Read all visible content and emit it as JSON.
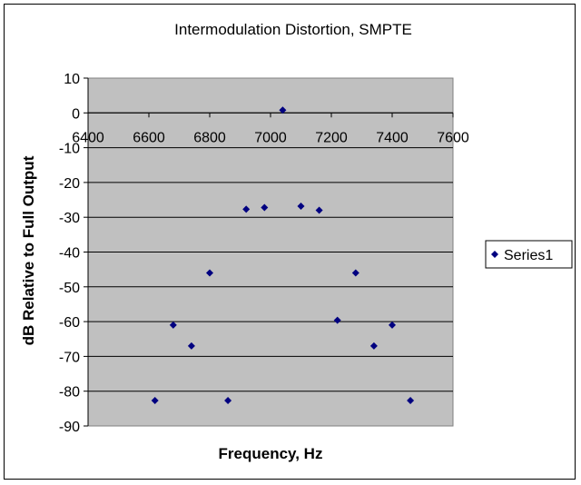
{
  "chart_data": {
    "type": "scatter",
    "title": "Intermodulation Distortion, SMPTE",
    "xlabel": "Frequency, Hz",
    "ylabel": "dB Relative to Full Output",
    "xlim": [
      6400,
      7600
    ],
    "ylim": [
      -90,
      10
    ],
    "x_ticks": [
      "6400",
      "6600",
      "6800",
      "7000",
      "7200",
      "7400",
      "7600"
    ],
    "y_ticks": [
      "10",
      "0",
      "-10",
      "-20",
      "-30",
      "-40",
      "-50",
      "-60",
      "-70",
      "-80",
      "-90"
    ],
    "grid": true,
    "legend_position": "right",
    "series": [
      {
        "name": "Series1",
        "color": "#000080",
        "marker": "diamond",
        "x": [
          6620,
          6680,
          6740,
          6800,
          6860,
          6920,
          6980,
          7040,
          7100,
          7160,
          7220,
          7280,
          7340,
          7400,
          7460
        ],
        "y": [
          -82.7,
          -61,
          -67,
          -46,
          -82.7,
          -27.7,
          -27.2,
          0.8,
          -26.8,
          -28,
          -59.6,
          -46,
          -67,
          -61,
          -82.7
        ]
      }
    ]
  }
}
